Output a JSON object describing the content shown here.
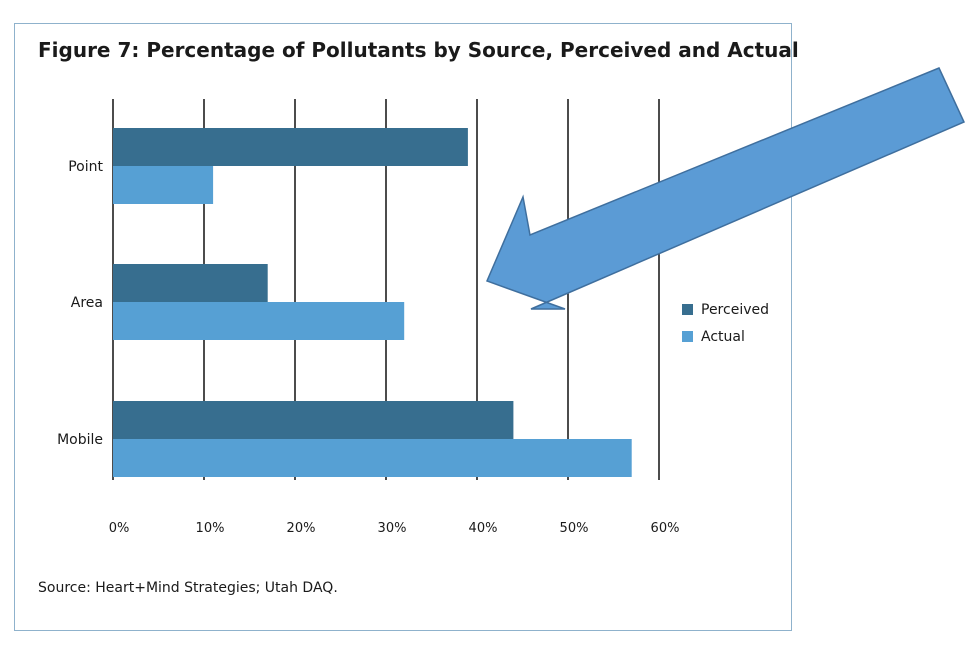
{
  "chart_data": {
    "type": "bar",
    "orientation": "horizontal",
    "title": "Figure 7: Percentage of Pollutants by Source, Perceived and Actual",
    "categories": [
      "Point",
      "Area",
      "Mobile"
    ],
    "series": [
      {
        "name": "Perceived",
        "color": "#376e8f",
        "values": [
          39,
          17,
          44
        ]
      },
      {
        "name": "Actual",
        "color": "#56a0d4",
        "values": [
          11,
          32,
          57
        ]
      }
    ],
    "x_ticks": [
      "0%",
      "10%",
      "20%",
      "30%",
      "40%",
      "50%",
      "60%"
    ],
    "xlim": [
      0,
      60
    ],
    "grid": true,
    "legend_position": "right",
    "source": "Source: Heart+Mind Strategies; Utah DAQ.",
    "annotation": {
      "type": "arrow",
      "color": "#5b9bd5",
      "points_to": "40%-50% region"
    }
  }
}
